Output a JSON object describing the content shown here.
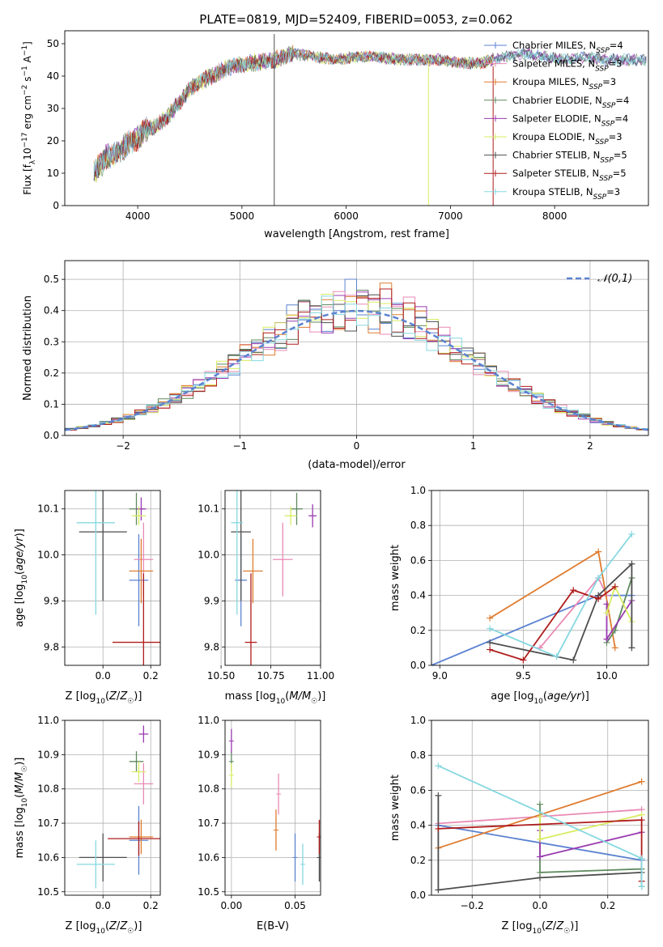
{
  "figure": {
    "title": "PLATE=0819, MJD=52409, FIBERID=0053, z=0.062"
  },
  "colors": {
    "ch_miles": "#5b82d0",
    "sa_miles": "#e98ab5",
    "kr_miles": "#df7c2f",
    "ch_elodie": "#5f8a5f",
    "sa_elodie": "#9a3bb0",
    "kr_elodie": "#d9ec62",
    "ch_stelib": "#4d4d4d",
    "sa_stelib": "#b01c1c",
    "kr_stelib": "#86d8e0",
    "normal": "#5b82d0",
    "grid": "#b0b0b0"
  },
  "chart_data": [
    {
      "id": "spectrum",
      "type": "line",
      "xlabel": "wavelength [Angstrom, rest frame]",
      "ylabel": "Flux [f",
      "xlim": [
        3300,
        8900
      ],
      "ylim": [
        0,
        54
      ],
      "xticks": [
        4000,
        5000,
        6000,
        7000,
        8000
      ],
      "yticks": [
        0,
        10,
        20,
        30,
        40,
        50
      ],
      "legend_position": "top-right",
      "series": [
        {
          "name": "Chabrier MILES, N",
          "suffix": "=4",
          "key": "ch_miles"
        },
        {
          "name": "Salpeter MILES, N",
          "suffix": "=3",
          "key": "sa_miles"
        },
        {
          "name": "Kroupa MILES, N",
          "suffix": "=3",
          "key": "kr_miles"
        },
        {
          "name": "Chabrier ELODIE, N",
          "suffix": "=4",
          "key": "ch_elodie"
        },
        {
          "name": "Salpeter ELODIE, N",
          "suffix": "=4",
          "key": "sa_elodie"
        },
        {
          "name": "Kroupa ELODIE, N",
          "suffix": "=3",
          "key": "kr_elodie"
        },
        {
          "name": "Chabrier STELIB, N",
          "suffix": "=5",
          "key": "ch_stelib"
        },
        {
          "name": "Salpeter STELIB, N",
          "suffix": "=5",
          "key": "sa_stelib"
        },
        {
          "name": "Kroupa STELIB, N",
          "suffix": "=3",
          "key": "kr_stelib"
        }
      ],
      "continuum": {
        "x": [
          3580,
          3700,
          3800,
          3900,
          4000,
          4100,
          4200,
          4300,
          4400,
          4500,
          4700,
          4900,
          5100,
          5300,
          5500,
          5700,
          5900,
          6100,
          6300,
          6500,
          6700,
          6900,
          7100,
          7300,
          7500,
          7700,
          7900,
          8100,
          8300,
          8500
        ],
        "y": [
          10,
          15,
          16,
          19,
          21,
          24,
          25,
          28,
          32,
          36,
          40,
          43,
          44,
          45,
          47,
          46,
          45,
          46,
          46,
          45,
          45,
          45,
          44,
          44,
          46,
          47,
          46,
          45,
          46,
          45
        ]
      },
      "spikes": [
        {
          "x": 5310,
          "y": [
            0,
            53
          ],
          "key": "ch_stelib"
        },
        {
          "x": 6790,
          "y": [
            0,
            45
          ],
          "key": "kr_elodie"
        },
        {
          "x": 7410,
          "y": [
            0,
            43
          ],
          "key": "sa_stelib"
        }
      ],
      "end_x": {
        "ch_miles": 8880,
        "kr_miles": 7420,
        "sa_elodie": 8880,
        "ch_elodie": 8880,
        "sa_miles": 7420,
        "kr_elodie": 7420,
        "ch_stelib": 8880,
        "sa_stelib": 7410,
        "kr_stelib": 8880
      }
    },
    {
      "id": "residuals",
      "type": "histogram",
      "xlabel": "(data-model)/error",
      "ylabel": "Normed distribution",
      "xlim": [
        -2.5,
        2.5
      ],
      "ylim": [
        0,
        0.56
      ],
      "xticks": [
        -2,
        -1,
        0,
        1,
        2
      ],
      "yticks": [
        0.0,
        0.1,
        0.2,
        0.3,
        0.4,
        0.5
      ],
      "bin_width": 0.1,
      "legend": {
        "label": "𝒩(0,1)",
        "position": "top-right"
      }
    },
    {
      "id": "age_vs_z",
      "type": "errorbar",
      "xlabel": "Z [log",
      "ylabel": "age  [log",
      "xlim": [
        -0.16,
        0.24
      ],
      "ylim": [
        9.76,
        10.14
      ],
      "xticks": [
        0.0,
        0.2
      ],
      "yticks": [
        9.8,
        9.9,
        10.0,
        10.1
      ],
      "points": [
        {
          "key": "ch_miles",
          "x": 0.15,
          "y": 9.945,
          "xerr": 0.04,
          "yerr": 0.1
        },
        {
          "key": "sa_miles",
          "x": 0.17,
          "y": 9.99,
          "xerr": 0.04,
          "yerr": 0.08
        },
        {
          "key": "kr_miles",
          "x": 0.16,
          "y": 9.965,
          "xerr": 0.05,
          "yerr": 0.07
        },
        {
          "key": "ch_elodie",
          "x": 0.14,
          "y": 10.1,
          "xerr": 0.03,
          "yerr": 0.035
        },
        {
          "key": "sa_elodie",
          "x": 0.16,
          "y": 10.1,
          "xerr": 0.02,
          "yerr": 0.025
        },
        {
          "key": "kr_elodie",
          "x": 0.15,
          "y": 10.085,
          "xerr": 0.03,
          "yerr": 0.02
        },
        {
          "key": "ch_stelib",
          "x": 0.0,
          "y": 10.05,
          "xerr": 0.1,
          "yerr": 0.15
        },
        {
          "key": "sa_stelib",
          "x": 0.17,
          "y": 9.81,
          "xerr": 0.13,
          "yerr": 0.15
        },
        {
          "key": "kr_stelib",
          "x": -0.03,
          "y": 10.07,
          "xerr": 0.08,
          "yerr": 0.2
        }
      ]
    },
    {
      "id": "age_vs_mass",
      "type": "errorbar",
      "xlabel": "mass [log",
      "ylabel": "",
      "xlim": [
        10.52,
        11.0
      ],
      "ylim": [
        9.76,
        10.14
      ],
      "xticks": [
        10.5,
        10.75,
        11.0
      ],
      "xticklabels": [
        "10.50",
        "10.75",
        "11.00"
      ],
      "yticks": [
        9.8,
        9.9,
        10.0,
        10.1
      ],
      "points": [
        {
          "key": "ch_miles",
          "x": 10.6,
          "y": 9.945,
          "xerr": 0.03,
          "yerr": 0.1
        },
        {
          "key": "sa_miles",
          "x": 10.81,
          "y": 9.99,
          "xerr": 0.05,
          "yerr": 0.08
        },
        {
          "key": "kr_miles",
          "x": 10.66,
          "y": 9.965,
          "xerr": 0.05,
          "yerr": 0.07
        },
        {
          "key": "ch_elodie",
          "x": 10.88,
          "y": 10.1,
          "xerr": 0.03,
          "yerr": 0.035
        },
        {
          "key": "sa_elodie",
          "x": 10.96,
          "y": 10.085,
          "xerr": 0.02,
          "yerr": 0.025
        },
        {
          "key": "kr_elodie",
          "x": 10.85,
          "y": 10.085,
          "xerr": 0.03,
          "yerr": 0.02
        },
        {
          "key": "ch_stelib",
          "x": 10.6,
          "y": 10.05,
          "xerr": 0.05,
          "yerr": 0.15
        },
        {
          "key": "sa_stelib",
          "x": 10.65,
          "y": 9.81,
          "xerr": 0.03,
          "yerr": 0.15
        },
        {
          "key": "kr_stelib",
          "x": 10.58,
          "y": 10.07,
          "xerr": 0.03,
          "yerr": 0.2
        }
      ]
    },
    {
      "id": "weight_vs_age",
      "type": "line",
      "xlabel": "age  [log",
      "ylabel": "mass weight",
      "xlim": [
        8.95,
        10.25
      ],
      "ylim": [
        0,
        1.0
      ],
      "xticks": [
        9.0,
        9.5,
        10.0
      ],
      "yticks": [
        0.0,
        0.2,
        0.4,
        0.6,
        0.8,
        1.0
      ],
      "series": [
        {
          "key": "ch_miles",
          "x": [
            8.95,
            9.95,
            10.15
          ],
          "y": [
            0.0,
            0.4,
            0.4
          ]
        },
        {
          "key": "sa_miles",
          "x": [
            9.6,
            9.95,
            10.0
          ],
          "y": [
            0.1,
            0.5,
            0.4
          ]
        },
        {
          "key": "kr_miles",
          "x": [
            9.3,
            9.95,
            10.05
          ],
          "y": [
            0.27,
            0.65,
            0.1
          ]
        },
        {
          "key": "ch_elodie",
          "x": [
            10.0,
            10.05,
            10.15
          ],
          "y": [
            0.13,
            0.2,
            0.5
          ]
        },
        {
          "key": "sa_elodie",
          "x": [
            10.0,
            10.0,
            10.15
          ],
          "y": [
            0.35,
            0.15,
            0.37
          ]
        },
        {
          "key": "kr_elodie",
          "x": [
            10.0,
            10.05,
            10.15
          ],
          "y": [
            0.3,
            0.45,
            0.25
          ]
        },
        {
          "key": "ch_stelib",
          "x": [
            9.3,
            9.8,
            9.95,
            10.15,
            10.15
          ],
          "y": [
            0.13,
            0.03,
            0.4,
            0.58,
            0.1
          ]
        },
        {
          "key": "sa_stelib",
          "x": [
            9.3,
            9.5,
            9.8,
            9.95,
            10.05
          ],
          "y": [
            0.09,
            0.03,
            0.43,
            0.38,
            0.45
          ]
        },
        {
          "key": "kr_stelib",
          "x": [
            9.3,
            9.7,
            9.95,
            10.15
          ],
          "y": [
            0.21,
            0.05,
            0.5,
            0.75
          ]
        }
      ]
    },
    {
      "id": "mass_vs_z",
      "type": "errorbar",
      "xlabel": "Z [log",
      "ylabel": "mass [log",
      "xlim": [
        -0.16,
        0.24
      ],
      "ylim": [
        10.49,
        11.0
      ],
      "xticks": [
        0.0,
        0.2
      ],
      "yticks": [
        10.5,
        10.6,
        10.7,
        10.8,
        10.9,
        11.0
      ],
      "points": [
        {
          "key": "ch_miles",
          "x": 0.15,
          "y": 10.65,
          "xerr": 0.04,
          "yerr": 0.1
        },
        {
          "key": "sa_miles",
          "x": 0.17,
          "y": 10.815,
          "xerr": 0.04,
          "yerr": 0.06
        },
        {
          "key": "kr_miles",
          "x": 0.16,
          "y": 10.66,
          "xerr": 0.05,
          "yerr": 0.05
        },
        {
          "key": "ch_elodie",
          "x": 0.14,
          "y": 10.88,
          "xerr": 0.03,
          "yerr": 0.03
        },
        {
          "key": "sa_elodie",
          "x": 0.17,
          "y": 10.96,
          "xerr": 0.02,
          "yerr": 0.025
        },
        {
          "key": "kr_elodie",
          "x": 0.15,
          "y": 10.85,
          "xerr": 0.03,
          "yerr": 0.03
        },
        {
          "key": "ch_stelib",
          "x": 0.0,
          "y": 10.6,
          "xerr": 0.1,
          "yerr": 0.07
        },
        {
          "key": "sa_stelib",
          "x": 0.15,
          "y": 10.655,
          "xerr": 0.13,
          "yerr": 0.05
        },
        {
          "key": "kr_stelib",
          "x": -0.03,
          "y": 10.58,
          "xerr": 0.08,
          "yerr": 0.07
        }
      ]
    },
    {
      "id": "mass_vs_ebv",
      "type": "errorbar",
      "xlabel": "E(B-V)",
      "ylabel": "",
      "xlim": [
        -0.005,
        0.07
      ],
      "ylim": [
        10.49,
        11.0
      ],
      "xticks": [
        0.0,
        0.05
      ],
      "xticklabels": [
        "0.00",
        "0.05"
      ],
      "yticks": [
        10.5,
        10.6,
        10.7,
        10.8,
        10.9,
        11.0
      ],
      "points": [
        {
          "key": "ch_miles",
          "x": 0.05,
          "y": 10.6,
          "xerr": 0,
          "yerr": 0.07
        },
        {
          "key": "sa_miles",
          "x": 0.037,
          "y": 10.785,
          "xerr": 0,
          "yerr": 0.06
        },
        {
          "key": "kr_miles",
          "x": 0.035,
          "y": 10.68,
          "xerr": 0,
          "yerr": 0.06
        },
        {
          "key": "ch_elodie",
          "x": 0.0,
          "y": 10.88,
          "xerr": 0,
          "yerr": 0.03
        },
        {
          "key": "sa_elodie",
          "x": 0.0,
          "y": 10.94,
          "xerr": 0,
          "yerr": 0.035
        },
        {
          "key": "kr_elodie",
          "x": 0.0,
          "y": 10.84,
          "xerr": 0,
          "yerr": 0.035
        },
        {
          "key": "ch_stelib",
          "x": 0.069,
          "y": 10.6,
          "xerr": 0,
          "yerr": 0.07
        },
        {
          "key": "sa_stelib",
          "x": 0.069,
          "y": 10.66,
          "xerr": 0,
          "yerr": 0.05
        },
        {
          "key": "kr_stelib",
          "x": 0.056,
          "y": 10.58,
          "xerr": 0,
          "yerr": 0.06
        }
      ]
    },
    {
      "id": "weight_vs_z",
      "type": "line",
      "xlabel": "Z [log",
      "ylabel": "mass weight",
      "xlim": [
        -0.32,
        0.32
      ],
      "ylim": [
        0,
        1.0
      ],
      "xticks": [
        -0.2,
        0.0,
        0.2
      ],
      "yticks": [
        0.0,
        0.2,
        0.4,
        0.6,
        0.8,
        1.0
      ],
      "series": [
        {
          "key": "ch_miles",
          "x": [
            -0.3,
            0.3
          ],
          "y": [
            0.4,
            0.2
          ]
        },
        {
          "key": "sa_miles",
          "x": [
            -0.3,
            0.3
          ],
          "y": [
            0.41,
            0.49
          ]
        },
        {
          "key": "kr_miles",
          "x": [
            -0.3,
            0.3
          ],
          "y": [
            0.27,
            0.65
          ]
        },
        {
          "key": "ch_elodie",
          "x": [
            0.0,
            0.0,
            0.3,
            0.3
          ],
          "y": [
            0.52,
            0.13,
            0.15,
            0.05
          ]
        },
        {
          "key": "sa_elodie",
          "x": [
            0.0,
            0.0,
            0.3
          ],
          "y": [
            0.37,
            0.22,
            0.36
          ]
        },
        {
          "key": "kr_elodie",
          "x": [
            0.0,
            0.0,
            0.3
          ],
          "y": [
            0.45,
            0.32,
            0.46
          ]
        },
        {
          "key": "ch_stelib",
          "x": [
            -0.3,
            -0.3,
            0.0,
            0.3
          ],
          "y": [
            0.57,
            0.03,
            0.1,
            0.13
          ]
        },
        {
          "key": "sa_stelib",
          "x": [
            -0.3,
            0.3,
            0.3
          ],
          "y": [
            0.38,
            0.43,
            0.08
          ]
        },
        {
          "key": "kr_stelib",
          "x": [
            -0.3,
            0.3,
            0.3
          ],
          "y": [
            0.74,
            0.21,
            0.05
          ]
        }
      ]
    }
  ]
}
